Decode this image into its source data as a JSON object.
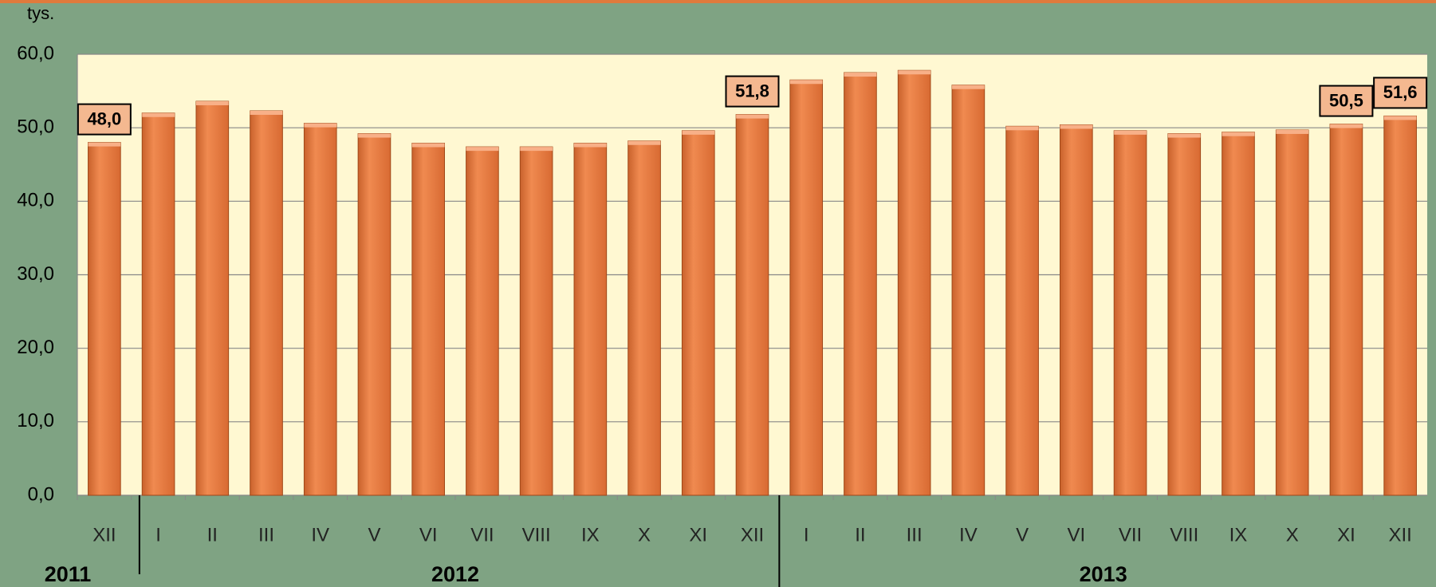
{
  "chart_data": {
    "type": "bar",
    "unit_label": "tys.",
    "categories": [
      "XII",
      "I",
      "II",
      "III",
      "IV",
      "V",
      "VI",
      "VII",
      "VIII",
      "IX",
      "X",
      "XI",
      "XII",
      "I",
      "II",
      "III",
      "IV",
      "V",
      "VI",
      "VII",
      "VIII",
      "IX",
      "X",
      "XI",
      "XII"
    ],
    "values": [
      48.0,
      52.0,
      53.6,
      52.3,
      50.6,
      49.2,
      47.9,
      47.4,
      47.4,
      47.9,
      48.2,
      49.6,
      51.8,
      56.5,
      57.5,
      57.8,
      55.8,
      50.2,
      50.4,
      49.6,
      49.2,
      49.4,
      49.7,
      50.5,
      51.6
    ],
    "value_labels": [
      "48,0",
      null,
      null,
      null,
      null,
      null,
      null,
      null,
      null,
      null,
      null,
      null,
      "51,8",
      null,
      null,
      null,
      null,
      null,
      null,
      null,
      null,
      null,
      null,
      "50,5",
      "51,6"
    ],
    "groups": [
      {
        "label": "2011",
        "count": 1
      },
      {
        "label": "2012",
        "count": 12
      },
      {
        "label": "2013",
        "count": 12
      }
    ],
    "color": "#ee8046",
    "ylim": [
      0,
      60
    ],
    "yticks": [
      {
        "value": 0,
        "label": "0,0"
      },
      {
        "value": 10,
        "label": "10,0"
      },
      {
        "value": 20,
        "label": "20,0"
      },
      {
        "value": 30,
        "label": "30,0"
      },
      {
        "value": 40,
        "label": "40,0"
      },
      {
        "value": 50,
        "label": "50,0"
      },
      {
        "value": 60,
        "label": "60,0"
      }
    ],
    "grid": true
  }
}
